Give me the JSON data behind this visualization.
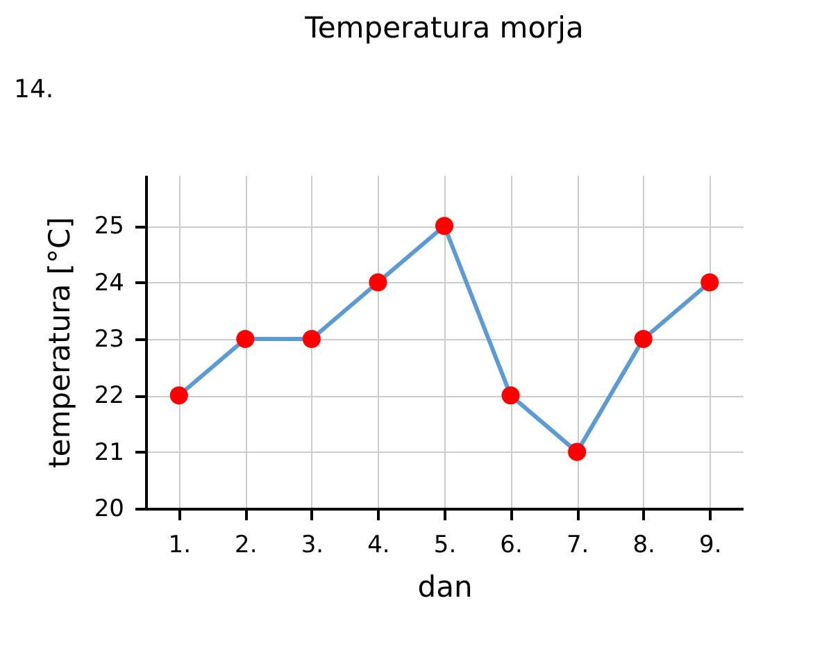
{
  "chart_data": {
    "type": "line",
    "title": "Temperatura morja",
    "xlabel": "dan",
    "ylabel": "temperatura [°C]",
    "annotations": [
      "14."
    ],
    "categories": [
      "1.",
      "2.",
      "3.",
      "4.",
      "5.",
      "6.",
      "7.",
      "8.",
      "9."
    ],
    "series": [
      {
        "color": "#5b9bd5",
        "values": [
          22,
          23,
          23,
          24,
          25,
          22,
          21,
          23,
          24
        ]
      },
      {
        "type": "scatter",
        "marker": "circle",
        "color": "#ff0000",
        "values": [
          22,
          23,
          23,
          24,
          25,
          22,
          21,
          23,
          24
        ]
      }
    ],
    "ylim": [
      20,
      25.9
    ],
    "yticks": [
      20,
      21,
      22,
      23,
      24,
      25
    ],
    "grid": true,
    "line_style": "solid"
  }
}
